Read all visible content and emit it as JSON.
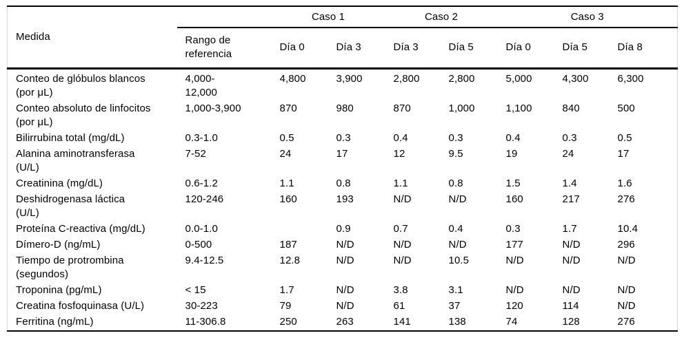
{
  "colors": {
    "text": "#000000",
    "rules": "#000000",
    "table_edge": "#d8d8d8",
    "background": "#ffffff"
  },
  "table": {
    "header": {
      "measure_label": "Medida",
      "reference_label": "Rango de\nreferencia",
      "case_groups": [
        {
          "label": "Caso 1"
        },
        {
          "label": "Caso 2"
        },
        {
          "label": "Caso 3"
        }
      ],
      "day_labels": [
        "Día 0",
        "Día 3",
        "Día 3",
        "Día 5",
        "Día 0",
        "Día 5",
        "Día 8"
      ]
    },
    "rows": [
      {
        "measure": "Conteo de glóbulos blancos\n(por μL)",
        "reference": "4,000-\n12,000",
        "values": [
          "4,800",
          "3,900",
          "2,800",
          "2,800",
          "5,000",
          "4,300",
          "6,300"
        ]
      },
      {
        "measure": "Conteo absoluto de linfocitos\n(por μL)",
        "reference": "1,000-3,900",
        "values": [
          "870",
          "980",
          "870",
          "1,000",
          "1,100",
          "840",
          "500"
        ]
      },
      {
        "measure": "Bilirrubina total (mg/dL)",
        "reference": "0.3-1.0",
        "values": [
          "0.5",
          "0.3",
          "0.4",
          "0.3",
          "0.4",
          "0.3",
          "0.5"
        ]
      },
      {
        "measure": "Alanina aminotransferasa\n(U/L)",
        "reference": "7-52",
        "values": [
          "24",
          "17",
          "12",
          "9.5",
          "19",
          "24",
          "17"
        ]
      },
      {
        "measure": "Creatinina (mg/dL)",
        "reference": "0.6-1.2",
        "values": [
          "1.1",
          "0.8",
          "1.1",
          "0.8",
          "1.5",
          "1.4",
          "1.6"
        ]
      },
      {
        "measure": "Deshidrogenasa láctica\n(U/L)",
        "reference": "120-246",
        "values": [
          "160",
          "193",
          "N/D",
          "N/D",
          "160",
          "217",
          "276"
        ]
      },
      {
        "measure": "Proteína C-reactiva (mg/dL)",
        "reference": "0.0-1.0",
        "values": [
          "",
          "0.9",
          "0.7",
          "0.4",
          "0.3",
          "1.7",
          "10.4"
        ]
      },
      {
        "measure": "Dímero-D (ng/mL)",
        "reference": "0-500",
        "values": [
          "187",
          "N/D",
          "N/D",
          "N/D",
          "177",
          "N/D",
          "296"
        ]
      },
      {
        "measure": "Tiempo de protrombina\n(segundos)",
        "reference": "9.4-12.5",
        "values": [
          "12.8",
          "N/D",
          "N/D",
          "10.5",
          "N/D",
          "N/D",
          "N/D"
        ]
      },
      {
        "measure": "Troponina (pg/mL)",
        "reference": "< 15",
        "values": [
          "1.7",
          "N/D",
          "3.8",
          "3.1",
          "N/D",
          "N/D",
          "N/D"
        ]
      },
      {
        "measure": "Creatina fosfoquinasa (U/L)",
        "reference": "30-223",
        "values": [
          "79",
          "N/D",
          "61",
          "37",
          "120",
          "114",
          "N/D"
        ]
      },
      {
        "measure": "Ferritina (ng/mL)",
        "reference": "11-306.8",
        "values": [
          "250",
          "263",
          "141",
          "138",
          "74",
          "128",
          "276"
        ]
      }
    ]
  }
}
